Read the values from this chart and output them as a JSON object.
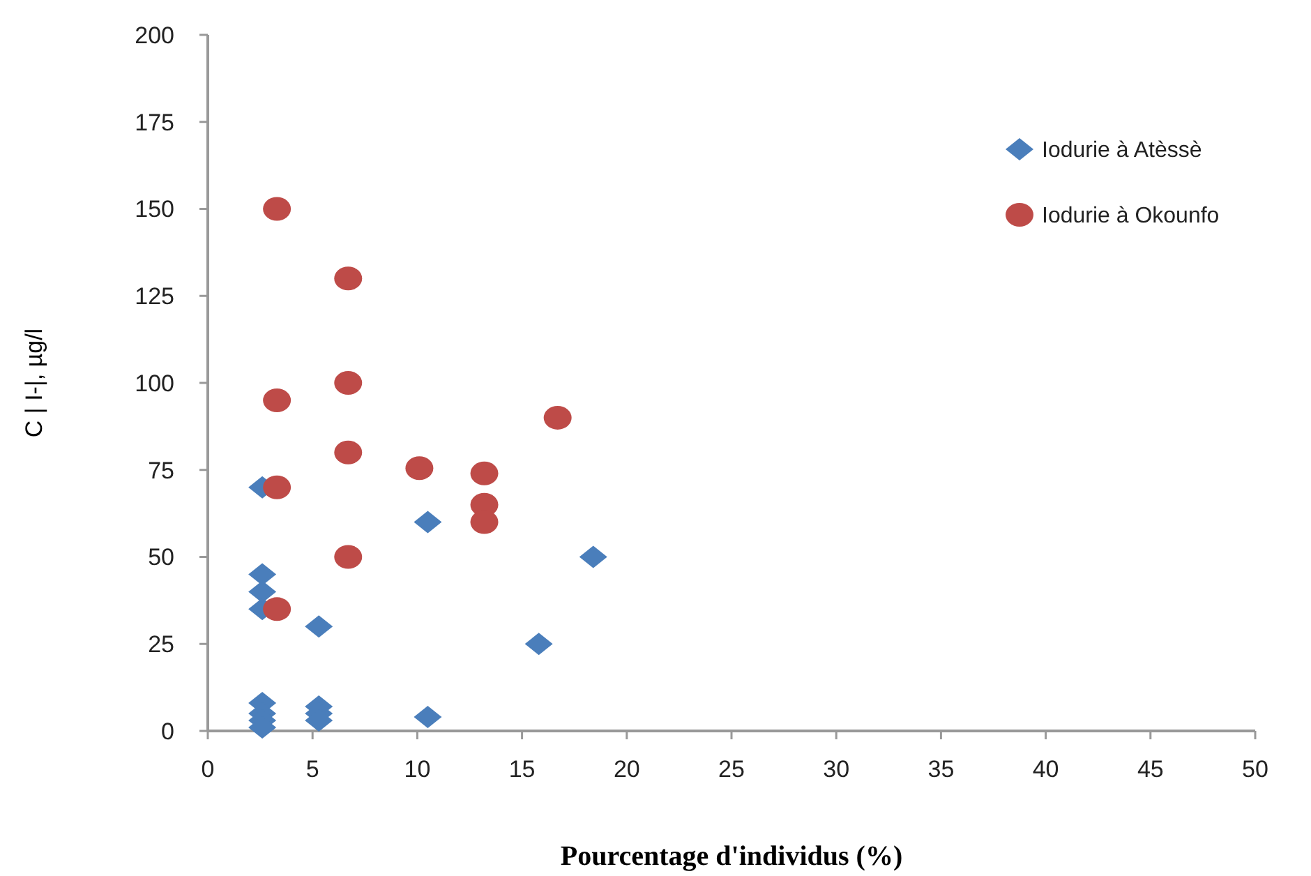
{
  "chart_data": {
    "type": "scatter",
    "xlabel": "Pourcentage  d'individus (%)",
    "ylabel": "C | I-|, µg/l",
    "xlim": [
      0,
      50
    ],
    "xticks": [
      0,
      5,
      10,
      15,
      20,
      25,
      30,
      35,
      40,
      45,
      50
    ],
    "ylim": [
      0,
      200
    ],
    "yticks": [
      0,
      25,
      50,
      75,
      100,
      125,
      150,
      175,
      200
    ],
    "grid": false,
    "legend": "top right",
    "series": [
      {
        "name": "Iodurie à Atèssè",
        "color": "#4a7ebb",
        "marker": "diamond",
        "x": [
          2.6,
          2.6,
          2.6,
          2.6,
          2.6,
          2.6,
          2.6,
          2.6,
          5.3,
          5.3,
          5.3,
          5.3,
          10.5,
          10.5,
          15.8,
          18.4
        ],
        "values": [
          70,
          45,
          40,
          35,
          8,
          5,
          3,
          1,
          30,
          7,
          5,
          3,
          60,
          4,
          25,
          50
        ]
      },
      {
        "name": "Iodurie à Okounfo",
        "color": "#be4b48",
        "marker": "circle",
        "x": [
          3.3,
          3.3,
          3.3,
          3.3,
          6.7,
          6.7,
          6.7,
          6.7,
          10.1,
          13.2,
          13.2,
          13.2,
          16.7
        ],
        "values": [
          150,
          95,
          70,
          35,
          130,
          100,
          80,
          50,
          75.5,
          74,
          65,
          60,
          90
        ]
      }
    ]
  }
}
